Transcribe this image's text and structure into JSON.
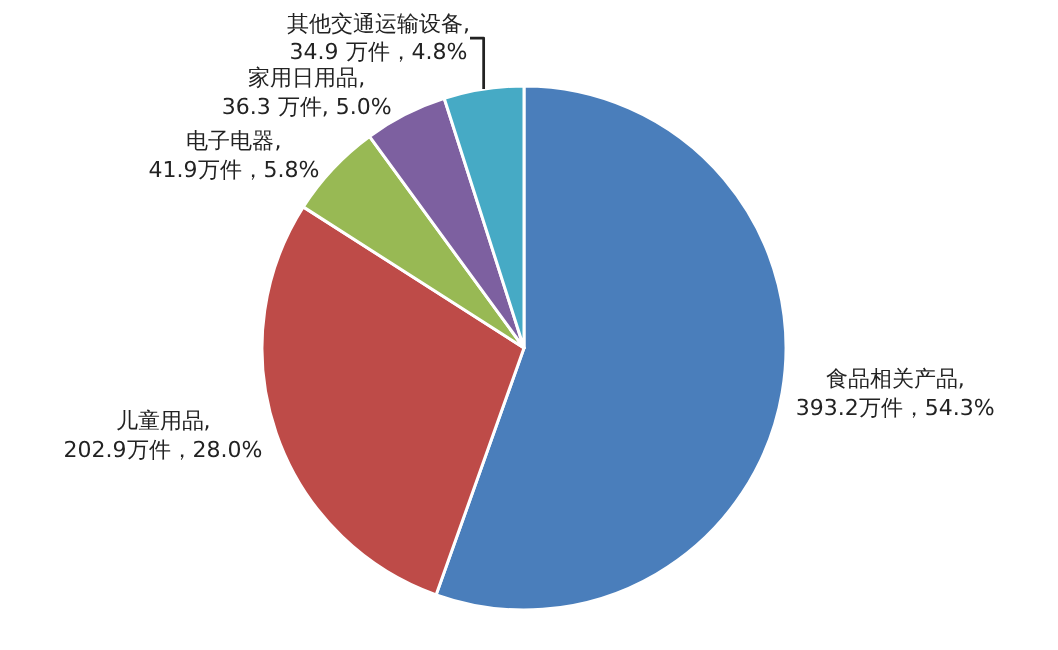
{
  "chart_data": {
    "type": "pie",
    "categories": [
      "食品相关产品",
      "儿童用品",
      "电子电器",
      "家用日用品",
      "其他交通运输设备"
    ],
    "values": [
      393.2,
      202.9,
      41.9,
      36.3,
      34.9
    ],
    "value_labels": [
      ", 393.2万件，54.3%",
      ", 202.9万件，28.0%",
      ", 41.9万件，5.8%",
      ", 36.3 万件, 5.0%",
      ", 34.9 万件，4.8%"
    ],
    "colors": [
      "#4a7ebb",
      "#be4b48",
      "#98b954",
      "#7d60a0",
      "#46aac5"
    ],
    "legend": false
  }
}
